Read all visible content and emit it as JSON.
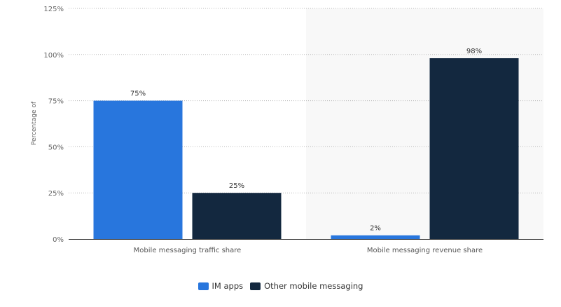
{
  "chart_data": {
    "type": "bar",
    "title": "",
    "xlabel": "",
    "ylabel": "Percentage of",
    "ylim": [
      0,
      125
    ],
    "yticks": [
      "0%",
      "25%",
      "50%",
      "75%",
      "100%",
      "125%"
    ],
    "ytick_values": [
      0,
      25,
      50,
      75,
      100,
      125
    ],
    "categories": [
      "Mobile messaging traffic share",
      "Mobile messaging revenue share"
    ],
    "series": [
      {
        "name": "IM apps",
        "values": [
          75,
          2
        ],
        "labels": [
          "75%",
          "2%"
        ],
        "color": "#2876dd"
      },
      {
        "name": "Other mobile messaging",
        "values": [
          25,
          98
        ],
        "labels": [
          "25%",
          "98%"
        ],
        "color": "#13283f"
      }
    ],
    "grid": true,
    "legend": "bottom-center"
  }
}
